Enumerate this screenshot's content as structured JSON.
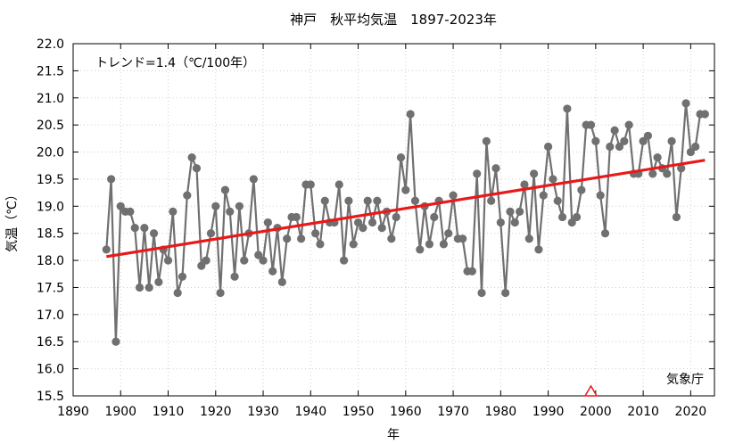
{
  "chart_data": {
    "type": "line",
    "title": "神戸　秋平均気温　1897-2023年",
    "xlabel": "年",
    "ylabel": "気温（℃）",
    "xlim": [
      1890,
      2025
    ],
    "ylim": [
      15.5,
      22.0
    ],
    "x_ticks": [
      1890,
      1900,
      1910,
      1920,
      1930,
      1940,
      1950,
      1960,
      1970,
      1980,
      1990,
      2000,
      2010,
      2020
    ],
    "x_tick_labels": [
      "1890",
      "1900",
      "1910",
      "1920",
      "1930",
      "1940",
      "1950",
      "1960",
      "1970",
      "1980",
      "1990",
      "2000",
      "2010",
      "2020"
    ],
    "y_ticks": [
      15.5,
      16.0,
      16.5,
      17.0,
      17.5,
      18.0,
      18.5,
      19.0,
      19.5,
      20.0,
      20.5,
      21.0,
      21.5,
      22.0
    ],
    "y_tick_labels": [
      "15.5",
      "16.0",
      "16.5",
      "17.0",
      "17.5",
      "18.0",
      "18.5",
      "19.0",
      "19.5",
      "20.0",
      "20.5",
      "21.0",
      "21.5",
      "22.0"
    ],
    "grid": true,
    "trend_label": "トレンド=1.4（℃/100年）",
    "source_label": "気象庁",
    "colors": {
      "series": "#707070",
      "trend": "#e8191a",
      "marker": "#e8191a"
    },
    "series": [
      {
        "x": [
          1897,
          1898,
          1899,
          1900,
          1901,
          1902,
          1903,
          1904,
          1905,
          1906,
          1907,
          1908,
          1909,
          1910,
          1911,
          1912,
          1913,
          1914,
          1915,
          1916,
          1917,
          1918,
          1919,
          1920,
          1921,
          1922,
          1923,
          1924,
          1925,
          1926,
          1927,
          1928,
          1929,
          1930,
          1931,
          1932,
          1933,
          1934,
          1935,
          1936,
          1937,
          1938,
          1939,
          1940,
          1941,
          1942,
          1943,
          1944,
          1945,
          1946,
          1947,
          1948,
          1949,
          1950,
          1951,
          1952,
          1953,
          1954,
          1955,
          1956,
          1957,
          1958,
          1959,
          1960,
          1961,
          1962,
          1963,
          1964,
          1965,
          1966,
          1967,
          1968,
          1969,
          1970,
          1971,
          1972,
          1973,
          1974,
          1975,
          1976,
          1977,
          1978,
          1979,
          1980,
          1981,
          1982,
          1983,
          1984,
          1985,
          1986,
          1987,
          1988,
          1989,
          1990,
          1991,
          1992,
          1993,
          1994,
          1995,
          1996,
          1997,
          1998,
          1999,
          2000,
          2001,
          2002,
          2003,
          2004,
          2005,
          2006,
          2007,
          2008,
          2009,
          2010,
          2011,
          2012,
          2013,
          2014,
          2015,
          2016,
          2017,
          2018,
          2019,
          2020,
          2021,
          2022,
          2023
        ],
        "values": [
          18.2,
          19.5,
          16.5,
          19.0,
          18.9,
          18.9,
          18.6,
          17.5,
          18.6,
          17.5,
          18.5,
          17.6,
          18.2,
          18.0,
          18.9,
          17.4,
          17.7,
          19.2,
          19.9,
          19.7,
          17.9,
          18.0,
          18.5,
          19.0,
          17.4,
          19.3,
          18.9,
          17.7,
          19.0,
          18.0,
          18.5,
          19.5,
          18.1,
          18.0,
          18.7,
          17.8,
          18.6,
          17.6,
          18.4,
          18.8,
          18.8,
          18.4,
          19.4,
          19.4,
          18.5,
          18.3,
          19.1,
          18.7,
          18.7,
          19.4,
          18.0,
          19.1,
          18.3,
          18.7,
          18.6,
          19.1,
          18.7,
          19.1,
          18.6,
          18.9,
          18.4,
          18.8,
          19.9,
          19.3,
          20.7,
          19.1,
          18.2,
          19.0,
          18.3,
          18.8,
          19.1,
          18.3,
          18.5,
          19.2,
          18.4,
          18.4,
          17.8,
          17.8,
          19.6,
          17.4,
          20.2,
          19.1,
          19.7,
          18.7,
          17.4,
          18.9,
          18.7,
          18.9,
          19.4,
          18.4,
          19.6,
          18.2,
          19.2,
          20.1,
          19.5,
          19.1,
          18.8,
          20.8,
          18.7,
          18.8,
          19.3,
          20.5,
          20.5,
          20.2,
          19.2,
          18.5,
          20.1,
          20.4,
          20.1,
          20.2,
          20.5,
          19.6,
          19.6,
          20.2,
          20.3,
          19.6,
          19.9,
          19.7,
          19.6,
          20.2,
          18.8,
          19.7,
          20.9,
          20.0,
          20.1,
          20.7,
          20.7
        ]
      }
    ],
    "trend": {
      "x": [
        1897,
        2023
      ],
      "values": [
        18.07,
        19.85
      ]
    },
    "markers": [
      {
        "x": 1999,
        "y": 15.5,
        "shape": "triangle"
      }
    ]
  }
}
